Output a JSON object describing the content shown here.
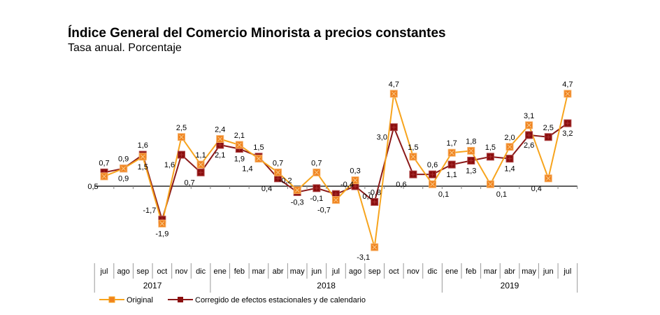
{
  "chart_data": {
    "type": "line",
    "title": "Índice General del Comercio Minorista a precios constantes",
    "subtitle": "Tasa anual. Porcentaje",
    "xlabel": "",
    "ylabel": "",
    "categories": [
      "jul",
      "ago",
      "sep",
      "oct",
      "nov",
      "dic",
      "ene",
      "feb",
      "mar",
      "abr",
      "may",
      "jun",
      "jul",
      "ago",
      "sep",
      "oct",
      "nov",
      "dic",
      "ene",
      "feb",
      "mar",
      "abr",
      "may",
      "jun",
      "jul"
    ],
    "years": [
      {
        "label": "2017",
        "start": 0,
        "end": 5
      },
      {
        "label": "2018",
        "start": 6,
        "end": 17
      },
      {
        "label": "2019",
        "start": 18,
        "end": 24
      }
    ],
    "series": [
      {
        "name": "Original",
        "color": "#F7A41D",
        "marker_color": "#F0821E",
        "values": [
          0.5,
          0.9,
          1.5,
          -1.9,
          2.5,
          1.1,
          2.4,
          2.1,
          1.4,
          0.7,
          -0.2,
          0.7,
          -0.7,
          0.3,
          -3.1,
          4.7,
          1.5,
          0.1,
          1.7,
          1.8,
          0.1,
          2.0,
          3.1,
          0.4,
          4.7
        ],
        "labels": [
          "0,5",
          "0,9",
          "1,5",
          "-1,9",
          "2,5",
          "1,1",
          "2,4",
          "2,1",
          "1,4",
          "0,7",
          "-0,2",
          "0,7",
          "-0,7",
          "0,3",
          "-3,1",
          "4,7",
          "1,5",
          "0,1",
          "1,7",
          "1,8",
          "0,1",
          "2,0",
          "3,1",
          "0,4",
          "4,7"
        ]
      },
      {
        "name": "Corregido de efectos estacionales y de calendario",
        "color": "#8B1A1A",
        "marker_color": "#8B0E0E",
        "values": [
          0.7,
          0.9,
          1.6,
          -1.7,
          1.6,
          0.7,
          2.1,
          1.9,
          1.5,
          0.4,
          -0.3,
          -0.1,
          -0.4,
          0.0,
          -0.8,
          3.0,
          0.6,
          0.6,
          1.1,
          1.3,
          1.5,
          1.4,
          2.6,
          2.5,
          3.2
        ],
        "labels": [
          "0,7",
          "0,9",
          "1,6",
          "-1,7",
          "1,6",
          "0,7",
          "2,1",
          "1,9",
          "1,5",
          "0,4",
          "-0,3",
          "-0,1",
          "-0,4",
          "0,0",
          "-0,8",
          "3,0",
          "0,6",
          "0,6",
          "1,1",
          "1,3",
          "1,5",
          "1,4",
          "2,6",
          "2,5",
          "3,2"
        ]
      }
    ],
    "ylim": [
      -3.5,
      5.0
    ],
    "grid": false,
    "legend": "bottom-left"
  }
}
